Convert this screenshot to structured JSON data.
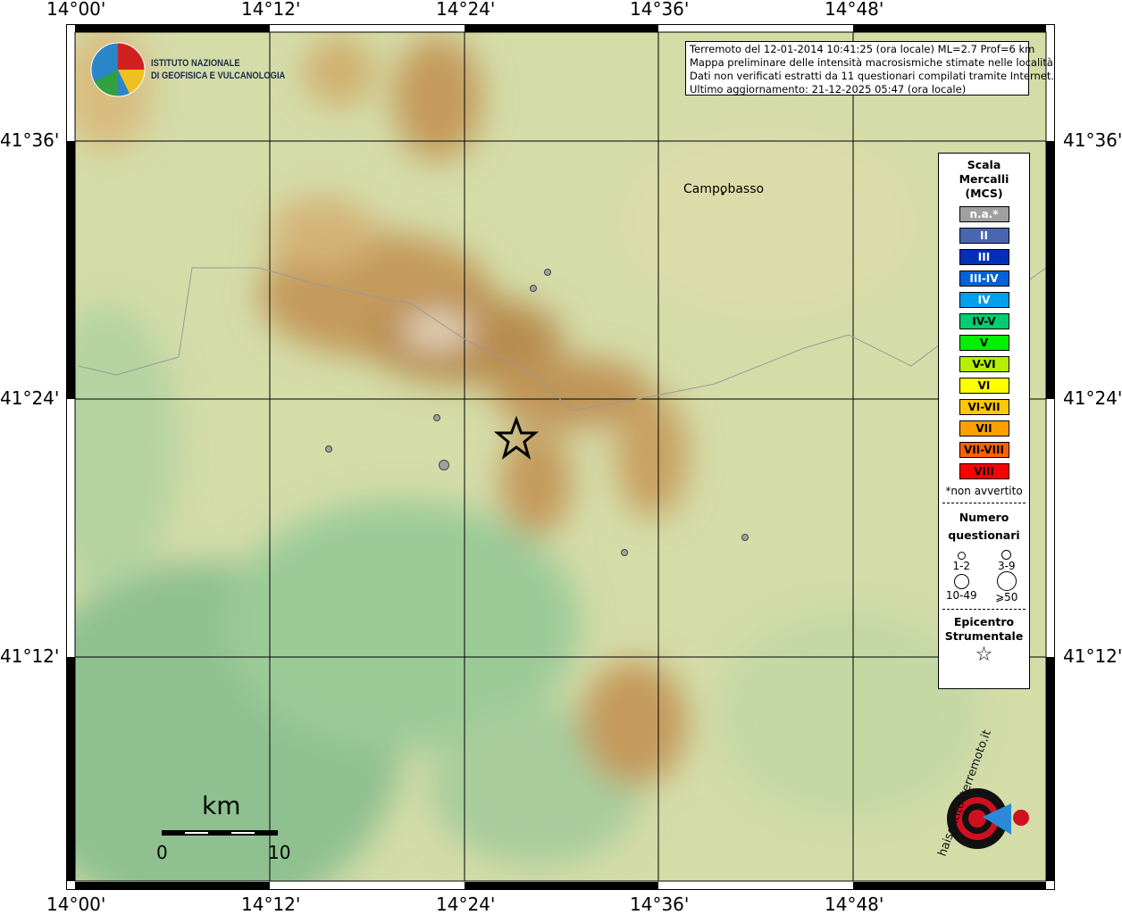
{
  "header": {
    "lines": [
      "Terremoto del 12-01-2014 10:41:25 (ora locale) ML=2.7 Prof=6 km",
      "Mappa preliminare delle intensità macrosismiche stimate nelle località",
      "Dati non verificati estratti da 11 questionari compilati tramite Internet.",
      "Ultimo aggiornamento: 21-12-2025 05:47 (ora locale)"
    ]
  },
  "axes": {
    "longitude_ticks": [
      "14°00'",
      "14°12'",
      "14°24'",
      "14°36'",
      "14°48'"
    ],
    "latitude_ticks": [
      "41°36'",
      "41°24'",
      "41°12'"
    ]
  },
  "logo_ingv": {
    "line1": "ISTITUTO NAZIONALE",
    "line2": "DI GEOFISICA E VULCANOLOGIA"
  },
  "logo_hsit": "www.haisentitoilterremoto.it",
  "places": [
    {
      "name": "Campobasso"
    }
  ],
  "legend": {
    "scale_title": [
      "Scala",
      "Mercalli",
      "(MCS)"
    ],
    "classes": [
      {
        "label": "n.a.*",
        "color": "#a0a0a0"
      },
      {
        "label": "II",
        "color": "#4a66b0"
      },
      {
        "label": "III",
        "color": "#0030b8"
      },
      {
        "label": "III-IV",
        "color": "#0062d4"
      },
      {
        "label": "IV",
        "color": "#00a0ee"
      },
      {
        "label": "IV-V",
        "color": "#00cc70"
      },
      {
        "label": "V",
        "color": "#00f000"
      },
      {
        "label": "V-VI",
        "color": "#b4f000"
      },
      {
        "label": "VI",
        "color": "#ffff00"
      },
      {
        "label": "VI-VII",
        "color": "#ffc800"
      },
      {
        "label": "VII",
        "color": "#ffa000"
      },
      {
        "label": "VII-VIII",
        "color": "#ff6000"
      },
      {
        "label": "VIII",
        "color": "#ff0000"
      }
    ],
    "na_note": "*non avvertito",
    "count_title": [
      "Numero",
      "questionari"
    ],
    "count_classes": [
      "1-2",
      "3-9",
      "10-49",
      "⩾50"
    ],
    "epicenter_title": [
      "Epicentro",
      "Strumentale"
    ]
  },
  "scalebar": {
    "unit": "km",
    "min": "0",
    "max": "10"
  },
  "observations": [
    {
      "intensity": "n.a.*",
      "count": "1-2"
    },
    {
      "intensity": "n.a.*",
      "count": "1-2"
    },
    {
      "intensity": "n.a.*",
      "count": "1-2"
    },
    {
      "intensity": "n.a.*",
      "count": "1-2"
    },
    {
      "intensity": "n.a.*",
      "count": "3-9"
    },
    {
      "intensity": "n.a.*",
      "count": "1-2"
    },
    {
      "intensity": "n.a.*",
      "count": "1-2"
    }
  ]
}
